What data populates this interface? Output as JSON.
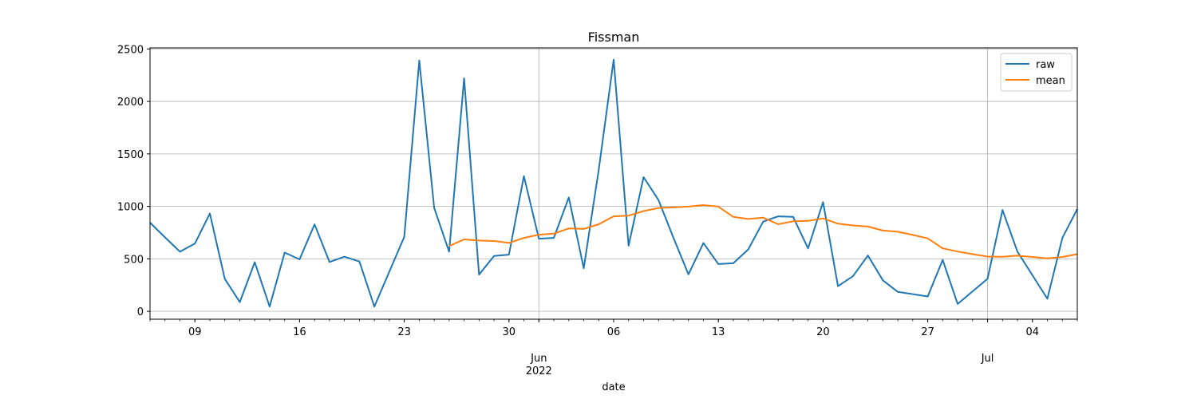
{
  "chart_data": {
    "type": "line",
    "title": "Fissman",
    "xlabel": "date",
    "ylabel": "",
    "x_range": [
      "2022-05-06",
      "2022-07-07"
    ],
    "ylim": [
      -75,
      2510
    ],
    "grid": "on",
    "legend_position": "top-right",
    "x_major_ticks": [
      {
        "date": "2022-06-01",
        "label": "Jun",
        "sublabel": "2022"
      },
      {
        "date": "2022-07-01",
        "label": "Jul",
        "sublabel": ""
      }
    ],
    "x_minor_ticks": [
      {
        "date": "2022-05-09",
        "label": "09"
      },
      {
        "date": "2022-05-16",
        "label": "16"
      },
      {
        "date": "2022-05-23",
        "label": "23"
      },
      {
        "date": "2022-05-30",
        "label": "30"
      },
      {
        "date": "2022-06-06",
        "label": "06"
      },
      {
        "date": "2022-06-13",
        "label": "13"
      },
      {
        "date": "2022-06-20",
        "label": "20"
      },
      {
        "date": "2022-06-27",
        "label": "27"
      },
      {
        "date": "2022-07-04",
        "label": "04"
      }
    ],
    "y_ticks": [
      0,
      500,
      1000,
      1500,
      2000,
      2500
    ],
    "series": [
      {
        "name": "raw",
        "color": "#1f77b4",
        "points": [
          [
            "2022-05-06",
            845
          ],
          [
            "2022-05-07",
            705
          ],
          [
            "2022-05-08",
            568
          ],
          [
            "2022-05-09",
            645
          ],
          [
            "2022-05-10",
            932
          ],
          [
            "2022-05-11",
            310
          ],
          [
            "2022-05-12",
            88
          ],
          [
            "2022-05-13",
            468
          ],
          [
            "2022-05-14",
            45
          ],
          [
            "2022-05-15",
            560
          ],
          [
            "2022-05-16",
            495
          ],
          [
            "2022-05-17",
            828
          ],
          [
            "2022-05-18",
            470
          ],
          [
            "2022-05-19",
            520
          ],
          [
            "2022-05-20",
            475
          ],
          [
            "2022-05-21",
            45
          ],
          [
            "2022-05-22",
            378
          ],
          [
            "2022-05-23",
            710
          ],
          [
            "2022-05-24",
            2390
          ],
          [
            "2022-05-25",
            985
          ],
          [
            "2022-05-26",
            568
          ],
          [
            "2022-05-27",
            2220
          ],
          [
            "2022-05-28",
            350
          ],
          [
            "2022-05-29",
            528
          ],
          [
            "2022-05-30",
            540
          ],
          [
            "2022-05-31",
            1288
          ],
          [
            "2022-06-01",
            692
          ],
          [
            "2022-06-02",
            700
          ],
          [
            "2022-06-03",
            1085
          ],
          [
            "2022-06-04",
            410
          ],
          [
            "2022-06-05",
            1350
          ],
          [
            "2022-06-06",
            2398
          ],
          [
            "2022-06-07",
            625
          ],
          [
            "2022-06-08",
            1278
          ],
          [
            "2022-06-09",
            1060
          ],
          [
            "2022-06-10",
            700
          ],
          [
            "2022-06-11",
            352
          ],
          [
            "2022-06-12",
            650
          ],
          [
            "2022-06-13",
            450
          ],
          [
            "2022-06-14",
            458
          ],
          [
            "2022-06-15",
            590
          ],
          [
            "2022-06-16",
            855
          ],
          [
            "2022-06-17",
            905
          ],
          [
            "2022-06-18",
            900
          ],
          [
            "2022-06-19",
            600
          ],
          [
            "2022-06-20",
            1040
          ],
          [
            "2022-06-21",
            240
          ],
          [
            "2022-06-22",
            335
          ],
          [
            "2022-06-23",
            532
          ],
          [
            "2022-06-24",
            295
          ],
          [
            "2022-06-25",
            185
          ],
          [
            "2022-06-27",
            142
          ],
          [
            "2022-06-28",
            490
          ],
          [
            "2022-06-29",
            70
          ],
          [
            "2022-07-01",
            310
          ],
          [
            "2022-07-02",
            965
          ],
          [
            "2022-07-03",
            568
          ],
          [
            "2022-07-05",
            120
          ],
          [
            "2022-07-06",
            700
          ],
          [
            "2022-07-07",
            975
          ]
        ]
      },
      {
        "name": "mean",
        "color": "#ff7f0e",
        "points": [
          [
            "2022-05-26",
            622
          ],
          [
            "2022-05-27",
            685
          ],
          [
            "2022-05-28",
            675
          ],
          [
            "2022-05-29",
            670
          ],
          [
            "2022-05-30",
            652
          ],
          [
            "2022-05-31",
            700
          ],
          [
            "2022-06-01",
            730
          ],
          [
            "2022-06-02",
            740
          ],
          [
            "2022-06-03",
            790
          ],
          [
            "2022-06-04",
            785
          ],
          [
            "2022-06-05",
            830
          ],
          [
            "2022-06-06",
            905
          ],
          [
            "2022-06-07",
            912
          ],
          [
            "2022-06-08",
            955
          ],
          [
            "2022-06-09",
            985
          ],
          [
            "2022-06-10",
            990
          ],
          [
            "2022-06-11",
            998
          ],
          [
            "2022-06-12",
            1012
          ],
          [
            "2022-06-13",
            998
          ],
          [
            "2022-06-14",
            900
          ],
          [
            "2022-06-15",
            880
          ],
          [
            "2022-06-16",
            892
          ],
          [
            "2022-06-17",
            830
          ],
          [
            "2022-06-18",
            858
          ],
          [
            "2022-06-19",
            862
          ],
          [
            "2022-06-20",
            885
          ],
          [
            "2022-06-21",
            835
          ],
          [
            "2022-06-22",
            818
          ],
          [
            "2022-06-23",
            808
          ],
          [
            "2022-06-24",
            770
          ],
          [
            "2022-06-25",
            758
          ],
          [
            "2022-06-26",
            728
          ],
          [
            "2022-06-27",
            695
          ],
          [
            "2022-06-28",
            600
          ],
          [
            "2022-06-29",
            570
          ],
          [
            "2022-06-30",
            545
          ],
          [
            "2022-07-01",
            522
          ],
          [
            "2022-07-02",
            520
          ],
          [
            "2022-07-03",
            530
          ],
          [
            "2022-07-04",
            518
          ],
          [
            "2022-07-05",
            505
          ],
          [
            "2022-07-06",
            518
          ],
          [
            "2022-07-07",
            545
          ]
        ]
      }
    ]
  }
}
